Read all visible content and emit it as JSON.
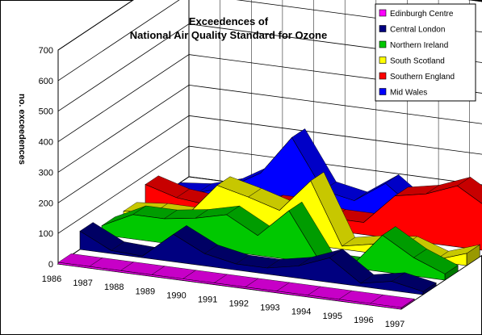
{
  "chart_data": {
    "type": "area",
    "view": "3d",
    "title": "Exceedences of",
    "subtitle": "National Air Quality Standard for Ozone",
    "xlabel": "",
    "ylabel": "no. exceedences",
    "ylim": [
      0,
      700
    ],
    "yticks": [
      0,
      100,
      200,
      300,
      400,
      500,
      600,
      700
    ],
    "categories": [
      "1986",
      "1987",
      "1988",
      "1989",
      "1990",
      "1991",
      "1992",
      "1993",
      "1994",
      "1995",
      "1996",
      "1997"
    ],
    "grid": true,
    "legend_position": "top-right",
    "series": [
      {
        "name": "Edinburgh Centre",
        "color": "#ff00ff",
        "values": [
          5,
          5,
          5,
          5,
          5,
          5,
          5,
          5,
          5,
          5,
          5,
          5
        ]
      },
      {
        "name": "Central London",
        "color": "#000080",
        "values": [
          60,
          10,
          5,
          90,
          40,
          20,
          20,
          40,
          80,
          10,
          30,
          10
        ]
      },
      {
        "name": "Northern Ireland",
        "color": "#00c800",
        "values": [
          30,
          80,
          80,
          95,
          120,
          65,
          160,
          5,
          5,
          120,
          60,
          20
        ]
      },
      {
        "name": "South Scotland",
        "color": "#ffff00",
        "values": [
          30,
          40,
          40,
          155,
          130,
          100,
          210,
          10,
          30,
          40,
          5,
          40
        ]
      },
      {
        "name": "Southern England",
        "color": "#ff0000",
        "values": [
          70,
          40,
          30,
          20,
          60,
          60,
          40,
          40,
          140,
          160,
          200,
          140
        ]
      },
      {
        "name": "Mid Wales",
        "color": "#0000ff",
        "values": [
          0,
          10,
          40,
          100,
          230,
          70,
          50,
          120,
          45,
          80,
          50,
          10
        ]
      }
    ]
  }
}
